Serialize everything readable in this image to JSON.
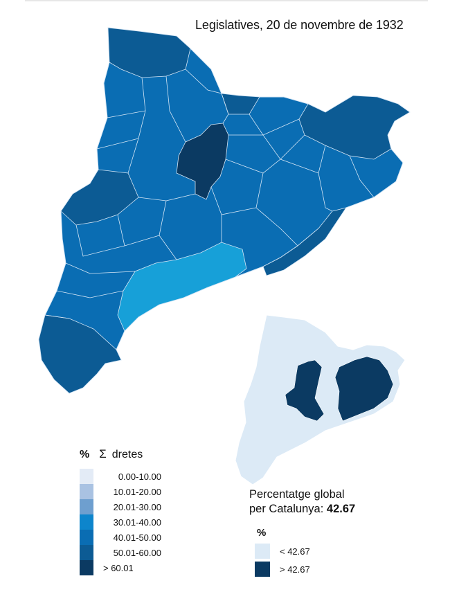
{
  "title": "Legislatives, 20 de novembre de 1932",
  "legend": {
    "unit": "%",
    "symbol": "Σ",
    "label": "dretes",
    "classes": [
      {
        "range": "0.00-10.00",
        "color": "#e3ebf6"
      },
      {
        "range": "10.01-20.00",
        "color": "#a9c2e2"
      },
      {
        "range": "20.01-30.00",
        "color": "#6e9fcf"
      },
      {
        "range": "30.01-40.00",
        "color": "#0d85cc"
      },
      {
        "range": "40.01-50.00",
        "color": "#0a6db3"
      },
      {
        "range": "50.01-60.00",
        "color": "#0c5b94"
      },
      {
        "range": "> 60.01",
        "color": "#0b3a62"
      }
    ]
  },
  "global": {
    "line1": "Percentatge global",
    "line2": "per Catalunya:",
    "value": "42.67"
  },
  "legend2": {
    "unit": "%",
    "classes": [
      {
        "range": "< 42.67",
        "color": "#dceaf6"
      },
      {
        "range": "> 42.67",
        "color": "#0b3a62"
      }
    ]
  },
  "map_colors": {
    "base": "#0a6db3",
    "north": "#0c5b94",
    "coast_light": "#17a0d8",
    "dark": "#0b3a62",
    "border": "#cfe0f0"
  }
}
